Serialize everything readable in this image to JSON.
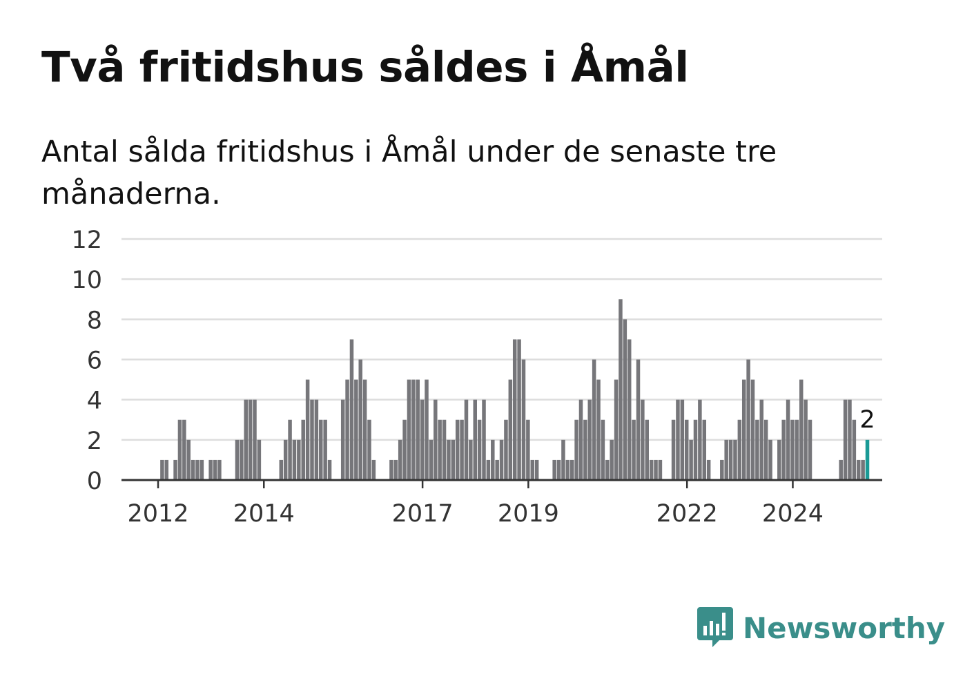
{
  "title": "Två fritidshus såldes i Åmål",
  "subtitle": "Antal sålda fritidshus i Åmål under de senaste tre månaderna.",
  "brand": {
    "name": "Newsworthy",
    "logo_icon": "bar-chart-speech-bubble-icon"
  },
  "colors": {
    "bar": "#76767a",
    "highlight": "#1a9a96",
    "grid": "#dddddd",
    "axis": "#333333",
    "brand": "#3a8e8a"
  },
  "chart_data": {
    "type": "bar",
    "ylim": [
      0,
      12
    ],
    "yticks": [
      0,
      2,
      4,
      6,
      8,
      10,
      12
    ],
    "xtick_labels": [
      {
        "label": "2012",
        "year": 2012
      },
      {
        "label": "2014",
        "year": 2014
      },
      {
        "label": "2017",
        "year": 2017
      },
      {
        "label": "2019",
        "year": 2019
      },
      {
        "label": "2022",
        "year": 2022
      },
      {
        "label": "2024",
        "year": 2024
      }
    ],
    "grid": true,
    "start": {
      "year": 2011,
      "month": 8
    },
    "values": [
      0,
      0,
      0,
      0,
      0,
      0,
      1,
      1,
      0,
      1,
      3,
      3,
      2,
      1,
      1,
      1,
      0,
      1,
      1,
      1,
      0,
      0,
      0,
      2,
      2,
      4,
      4,
      4,
      2,
      0,
      0,
      0,
      0,
      1,
      2,
      3,
      2,
      2,
      3,
      5,
      4,
      4,
      3,
      3,
      1,
      0,
      0,
      4,
      5,
      7,
      5,
      6,
      5,
      3,
      1,
      0,
      0,
      0,
      1,
      1,
      2,
      3,
      5,
      5,
      5,
      4,
      5,
      2,
      4,
      3,
      3,
      2,
      2,
      3,
      3,
      4,
      2,
      4,
      3,
      4,
      1,
      2,
      1,
      2,
      3,
      5,
      7,
      7,
      6,
      3,
      1,
      1,
      0,
      0,
      0,
      1,
      1,
      2,
      1,
      1,
      3,
      4,
      3,
      4,
      6,
      5,
      3,
      1,
      2,
      5,
      9,
      8,
      7,
      3,
      6,
      4,
      3,
      1,
      1,
      1,
      0,
      0,
      3,
      4,
      4,
      3,
      2,
      3,
      4,
      3,
      1,
      0,
      0,
      1,
      2,
      2,
      2,
      3,
      5,
      6,
      5,
      3,
      4,
      3,
      2,
      0,
      2,
      3,
      4,
      3,
      3,
      5,
      4,
      3,
      0,
      0,
      0,
      0,
      0,
      0,
      1,
      4,
      4,
      3,
      1,
      1,
      2
    ],
    "highlight": {
      "label": "2"
    }
  }
}
